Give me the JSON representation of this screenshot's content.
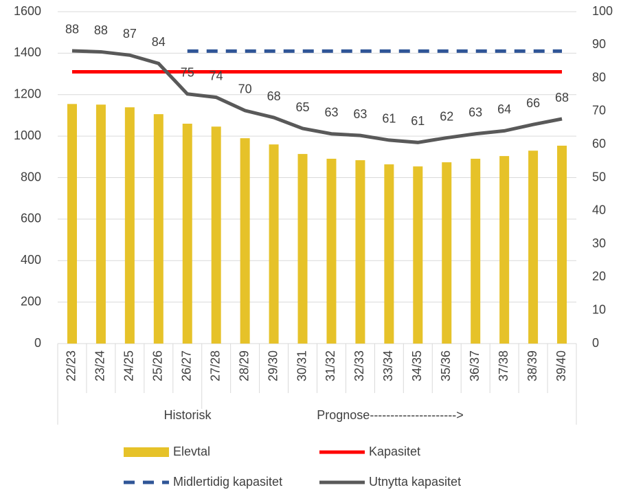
{
  "chart_data": {
    "type": "bar_line",
    "categories": [
      "22/23",
      "23/24",
      "24/25",
      "25/26",
      "26/27",
      "27/28",
      "28/29",
      "29/30",
      "30/31",
      "31/32",
      "32/33",
      "33/34",
      "34/35",
      "35/36",
      "36/37",
      "37/38",
      "38/39",
      "39/40"
    ],
    "group_labels": [
      "Historisk",
      "Prognose--------------------->"
    ],
    "series": [
      {
        "name": "Elevtal",
        "type": "bar",
        "color": "#e6c229",
        "values": [
          1155,
          1152,
          1139,
          1106,
          1060,
          1046,
          990,
          960,
          914,
          891,
          884,
          864,
          854,
          874,
          891,
          904,
          930,
          954
        ]
      },
      {
        "name": "Kapasitet",
        "type": "line",
        "color": "#ff0000",
        "values": [
          1310,
          1310,
          1310,
          1310,
          1310,
          1310,
          1310,
          1310,
          1310,
          1310,
          1310,
          1310,
          1310,
          1310,
          1310,
          1310,
          1310,
          1310
        ]
      },
      {
        "name": "Midlertidig kapasitet",
        "type": "line",
        "dashed": true,
        "color": "#2f5597",
        "values": [
          null,
          null,
          null,
          null,
          1410,
          1410,
          1410,
          1410,
          1410,
          1410,
          1410,
          1410,
          1410,
          1410,
          1410,
          1410,
          1410,
          1410
        ]
      },
      {
        "name": "Utnytta kapasitet",
        "type": "line",
        "axis": "y2",
        "color": "#595959",
        "values": [
          88.2,
          87.9,
          86.9,
          84.4,
          75.2,
          74.2,
          70.2,
          68.1,
          64.8,
          63.2,
          62.7,
          61.3,
          60.6,
          62.0,
          63.2,
          64.1,
          66.0,
          67.7
        ],
        "value_labels": [
          "88",
          "88",
          "87",
          "84",
          "75",
          "74",
          "70",
          "68",
          "65",
          "63",
          "63",
          "61",
          "61",
          "62",
          "63",
          "64",
          "66",
          "68"
        ]
      }
    ],
    "ylim": [
      0,
      1600
    ],
    "yticks": [
      0,
      200,
      400,
      600,
      800,
      1000,
      1200,
      1400,
      1600
    ],
    "y2lim": [
      0,
      100
    ],
    "y2ticks": [
      0,
      10,
      20,
      30,
      40,
      50,
      60,
      70,
      80,
      90,
      100
    ],
    "grid": true
  }
}
